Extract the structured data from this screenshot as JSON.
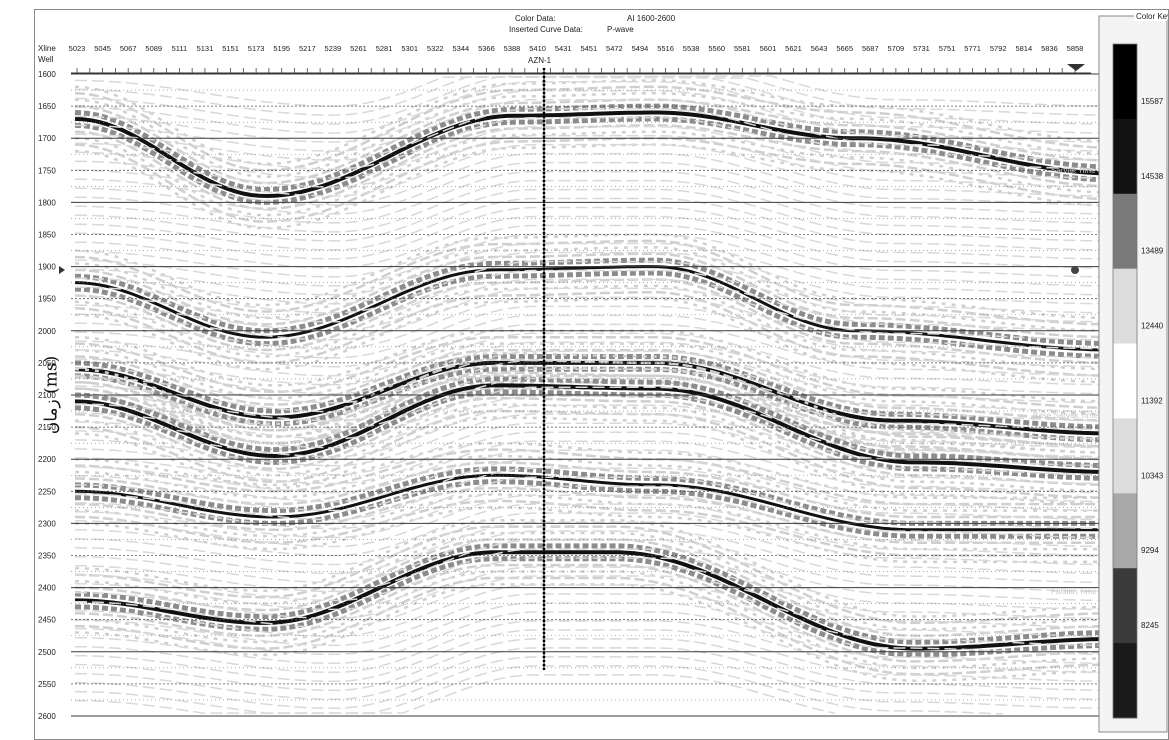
{
  "header": {
    "color_data_label": "Color Data:",
    "color_data_value": "AI 1600-2600",
    "curve_data_label": "Inserted Curve Data:",
    "curve_data_value": "P-wave"
  },
  "axis": {
    "xline_label": "Xline",
    "well_label": "Well",
    "y_label": "زمان (ms)",
    "xlines": [
      "5023",
      "5045",
      "5067",
      "5089",
      "5111",
      "5131",
      "5151",
      "5173",
      "5195",
      "5217",
      "5239",
      "5261",
      "5281",
      "5301",
      "5322",
      "5344",
      "5366",
      "5388",
      "5410",
      "5431",
      "5451",
      "5472",
      "5494",
      "5516",
      "5538",
      "5560",
      "5581",
      "5601",
      "5621",
      "5643",
      "5665",
      "5687",
      "5709",
      "5731",
      "5751",
      "5771",
      "5792",
      "5814",
      "5836",
      "5858"
    ],
    "times": [
      "1600",
      "1650",
      "1700",
      "1750",
      "1800",
      "1850",
      "1900",
      "1950",
      "2000",
      "2050",
      "2100",
      "2150",
      "2200",
      "2250",
      "2300",
      "2350",
      "2400",
      "2450",
      "2500",
      "2550",
      "2600"
    ],
    "time_range_ms": [
      1600,
      2600
    ]
  },
  "well": {
    "name": "AZN-1"
  },
  "horizon_labels": [
    "Sarvak Time",
    "Base Sarvak Time",
    "Fahlian Time"
  ],
  "color_key": {
    "title": "Color Key",
    "labels": [
      "15587",
      "14538",
      "13489",
      "12440",
      "11392",
      "10343",
      "9294",
      "8245"
    ],
    "swatches": [
      "#000000",
      "#111111",
      "#7a7a7a",
      "#dcdcdc",
      "#ffffff",
      "#dcdcdc",
      "#a8a8a8",
      "#3a3a3a",
      "#1a1a1a"
    ]
  },
  "colors": {
    "dark": "#111111",
    "medium": "#8c8c8c",
    "light": "#cfcfcf",
    "grid": "#555555"
  }
}
